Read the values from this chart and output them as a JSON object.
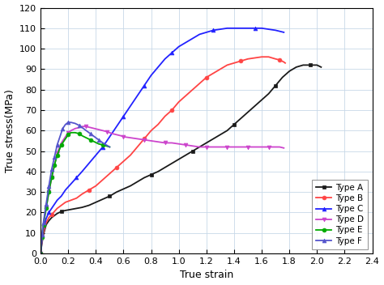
{
  "title": "",
  "xlabel": "True strain",
  "ylabel": "True stress(MPa)",
  "xlim": [
    0,
    2.4
  ],
  "ylim": [
    0,
    120
  ],
  "xticks": [
    0.0,
    0.2,
    0.4,
    0.6,
    0.8,
    1.0,
    1.2,
    1.4,
    1.6,
    1.8,
    2.0,
    2.2,
    2.4
  ],
  "yticks": [
    0,
    10,
    20,
    30,
    40,
    50,
    60,
    70,
    80,
    90,
    100,
    110,
    120
  ],
  "series": [
    {
      "label": "Type A",
      "color": "#1a1a1a",
      "marker": "s",
      "markersize": 3.5,
      "markevery": 0.12,
      "x": [
        0.0,
        0.01,
        0.02,
        0.04,
        0.06,
        0.08,
        0.1,
        0.12,
        0.15,
        0.18,
        0.22,
        0.26,
        0.3,
        0.35,
        0.4,
        0.45,
        0.5,
        0.55,
        0.6,
        0.65,
        0.7,
        0.75,
        0.8,
        0.85,
        0.9,
        0.95,
        1.0,
        1.05,
        1.1,
        1.15,
        1.2,
        1.25,
        1.3,
        1.35,
        1.4,
        1.45,
        1.5,
        1.55,
        1.6,
        1.65,
        1.7,
        1.75,
        1.8,
        1.85,
        1.9,
        1.95,
        2.0,
        2.03
      ],
      "y": [
        0,
        5,
        9,
        14,
        16,
        17.5,
        18.5,
        19.5,
        20.5,
        21,
        21.5,
        22,
        22.5,
        23.5,
        25,
        26.5,
        28,
        30,
        31.5,
        33,
        35,
        37,
        38.5,
        40,
        42,
        44,
        46,
        48,
        50,
        52,
        54,
        56,
        58,
        60,
        63,
        66,
        69,
        72,
        75,
        78,
        82,
        86,
        89,
        91,
        92,
        92,
        92,
        91
      ]
    },
    {
      "label": "Type B",
      "color": "#ff4444",
      "marker": "o",
      "markersize": 3.5,
      "markevery": 0.1,
      "x": [
        0.0,
        0.01,
        0.02,
        0.04,
        0.06,
        0.08,
        0.1,
        0.12,
        0.15,
        0.18,
        0.22,
        0.26,
        0.3,
        0.35,
        0.4,
        0.45,
        0.5,
        0.55,
        0.6,
        0.65,
        0.7,
        0.75,
        0.8,
        0.85,
        0.9,
        0.95,
        1.0,
        1.05,
        1.1,
        1.15,
        1.2,
        1.25,
        1.3,
        1.35,
        1.4,
        1.45,
        1.5,
        1.55,
        1.6,
        1.65,
        1.7,
        1.73,
        1.76,
        1.77
      ],
      "y": [
        0,
        6,
        10,
        15,
        17.5,
        19,
        20.5,
        22,
        23.5,
        25,
        26,
        27,
        29,
        31,
        33,
        36,
        39,
        42,
        45,
        48,
        52,
        56,
        60,
        63,
        67,
        70,
        74,
        77,
        80,
        83,
        86,
        88,
        90,
        92,
        93,
        94,
        95,
        95.5,
        96,
        96,
        95,
        94.5,
        93.5,
        93
      ]
    },
    {
      "label": "Type C",
      "color": "#2222ff",
      "marker": "^",
      "markersize": 3.5,
      "markevery": 0.1,
      "x": [
        0.0,
        0.01,
        0.02,
        0.04,
        0.06,
        0.08,
        0.1,
        0.12,
        0.15,
        0.18,
        0.22,
        0.26,
        0.3,
        0.35,
        0.4,
        0.45,
        0.5,
        0.55,
        0.6,
        0.65,
        0.7,
        0.75,
        0.8,
        0.85,
        0.9,
        0.95,
        1.0,
        1.05,
        1.1,
        1.15,
        1.2,
        1.25,
        1.3,
        1.35,
        1.4,
        1.45,
        1.5,
        1.55,
        1.6,
        1.65,
        1.7,
        1.73,
        1.76
      ],
      "y": [
        0,
        7,
        12,
        17,
        20,
        22,
        24,
        26,
        28,
        31,
        34,
        37,
        40,
        44,
        48,
        52,
        57,
        62,
        67,
        72,
        77,
        82,
        87,
        91,
        95,
        98,
        101,
        103,
        105,
        107,
        108,
        109,
        109.5,
        110,
        110,
        110,
        110,
        110,
        110,
        109.5,
        109,
        108.5,
        108
      ]
    },
    {
      "label": "Type D",
      "color": "#cc44cc",
      "marker": "v",
      "markersize": 3.5,
      "markevery": 0.05,
      "x": [
        0.0,
        0.01,
        0.02,
        0.04,
        0.06,
        0.08,
        0.1,
        0.12,
        0.15,
        0.18,
        0.2,
        0.22,
        0.25,
        0.28,
        0.3,
        0.33,
        0.36,
        0.39,
        0.42,
        0.45,
        0.48,
        0.5,
        0.52,
        0.55,
        0.58,
        0.6,
        0.65,
        0.7,
        0.75,
        0.8,
        0.85,
        0.9,
        0.95,
        1.0,
        1.05,
        1.1,
        1.15,
        1.2,
        1.25,
        1.3,
        1.35,
        1.4,
        1.45,
        1.5,
        1.55,
        1.6,
        1.65,
        1.7,
        1.73,
        1.76
      ],
      "y": [
        0,
        8,
        14,
        22,
        30,
        37,
        43,
        49,
        54,
        57,
        59,
        60,
        61,
        61.5,
        62,
        62,
        61.5,
        61,
        60.5,
        60,
        59.5,
        59,
        58.5,
        58,
        57.5,
        57,
        56.5,
        56,
        55.5,
        55,
        54.5,
        54,
        54,
        53.5,
        53,
        52.5,
        52,
        52,
        52,
        52,
        52,
        52,
        52,
        52,
        52,
        52,
        52,
        52,
        52,
        51.5
      ]
    },
    {
      "label": "Type E",
      "color": "#00aa00",
      "marker": "o",
      "markersize": 3.5,
      "markevery": 0.03,
      "x": [
        0.0,
        0.01,
        0.02,
        0.04,
        0.06,
        0.08,
        0.1,
        0.12,
        0.15,
        0.18,
        0.2,
        0.22,
        0.25,
        0.28,
        0.3,
        0.33,
        0.36,
        0.39,
        0.42,
        0.45,
        0.5
      ],
      "y": [
        0,
        8,
        14,
        22,
        30,
        37,
        43,
        48,
        53,
        56,
        58,
        59,
        59,
        58.5,
        57.5,
        56.5,
        55.5,
        54.5,
        53.5,
        53,
        52
      ]
    },
    {
      "label": "Type F",
      "color": "#5555cc",
      "marker": "^",
      "markersize": 3.5,
      "markevery": 0.03,
      "x": [
        0.0,
        0.01,
        0.02,
        0.04,
        0.06,
        0.08,
        0.1,
        0.12,
        0.14,
        0.16,
        0.18,
        0.2,
        0.22,
        0.25,
        0.28,
        0.3,
        0.33,
        0.36,
        0.39,
        0.42,
        0.45,
        0.5
      ],
      "y": [
        0,
        9,
        15,
        24,
        33,
        41,
        47,
        53,
        57,
        61,
        63,
        64,
        64,
        63.5,
        62.5,
        61.5,
        60,
        58.5,
        57,
        55.5,
        54,
        52
      ]
    }
  ],
  "legend_loc": "lower right",
  "grid_color": "#c8d8e8",
  "background_color": "#ffffff"
}
